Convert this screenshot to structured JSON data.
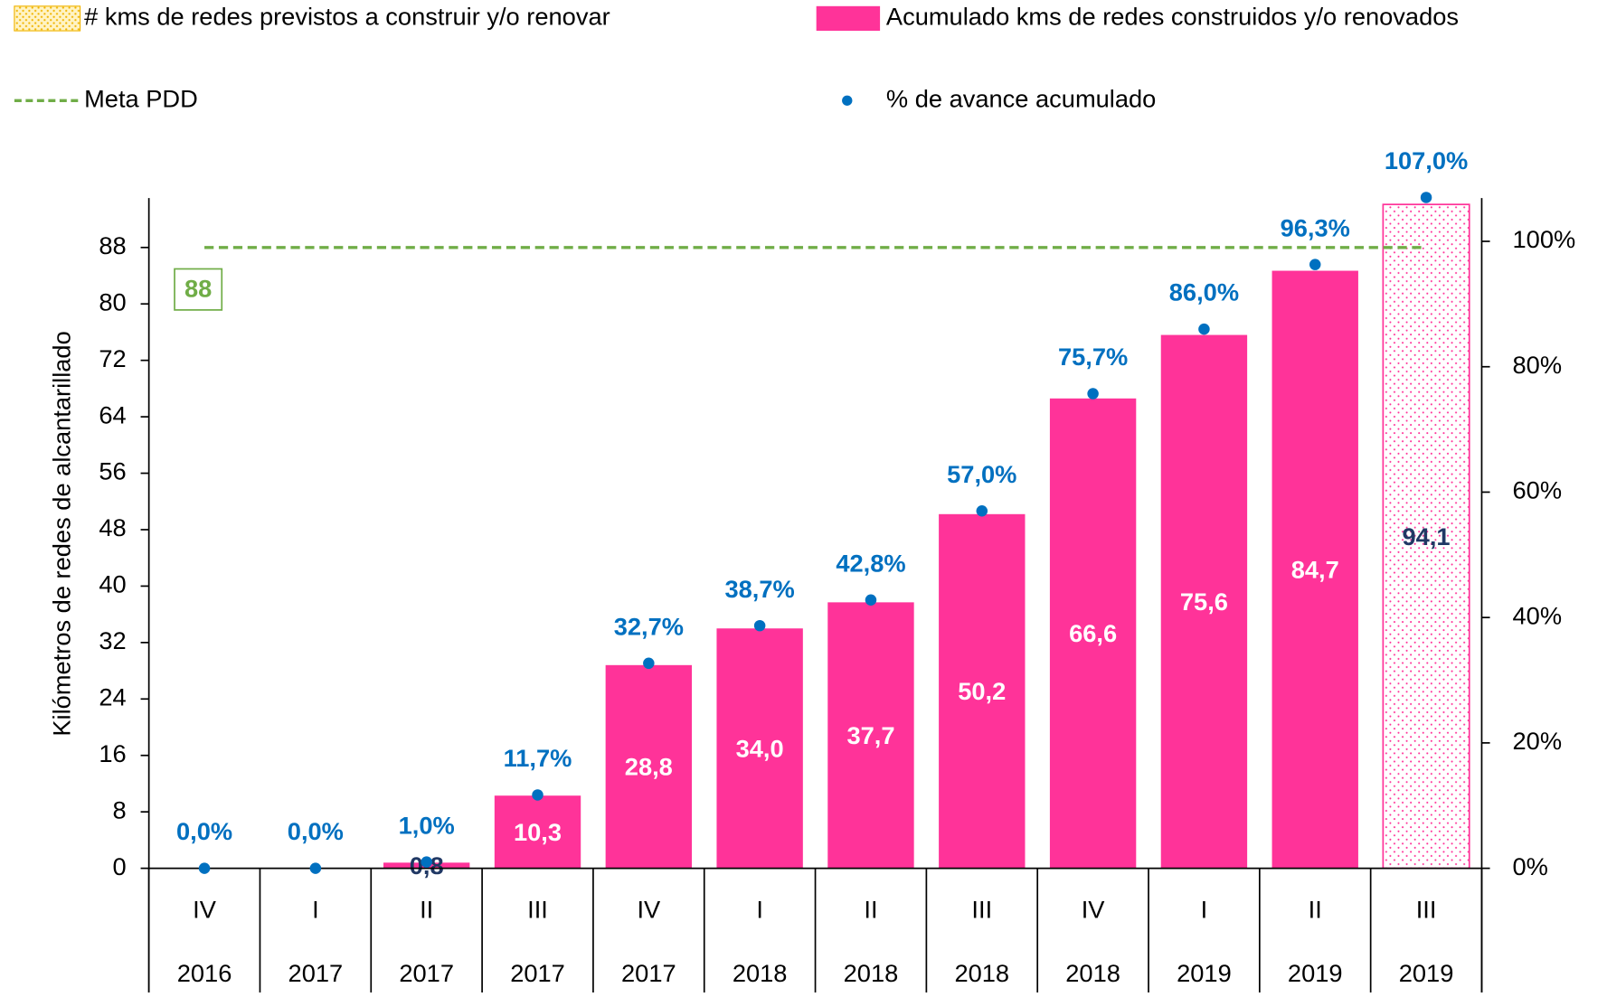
{
  "chart_data": {
    "type": "bar",
    "y_axis_label": "Kilómetros de redes de alcantarillado",
    "categories": [
      "IV",
      "I",
      "II",
      "III",
      "IV",
      "I",
      "II",
      "III",
      "IV",
      "I",
      "II",
      "III"
    ],
    "category_years": [
      "2016",
      "2017",
      "2017",
      "2017",
      "2017",
      "2018",
      "2018",
      "2018",
      "2018",
      "2019",
      "2019",
      "2019"
    ],
    "series": [
      {
        "name": "# kms de redes previstos a construir y/o renovar",
        "type": "bar",
        "color": "#ff3399",
        "values": [
          null,
          null,
          null,
          null,
          null,
          null,
          null,
          null,
          null,
          null,
          null,
          94.1
        ],
        "value_labels": [
          null,
          null,
          null,
          null,
          null,
          null,
          null,
          null,
          null,
          null,
          null,
          "94,1"
        ]
      },
      {
        "name": "Acumulado kms de redes construidos y/o renovados",
        "type": "bar",
        "color": "#ff3399",
        "values": [
          0,
          0,
          0.8,
          10.3,
          28.8,
          34.0,
          37.7,
          50.2,
          66.6,
          75.6,
          84.7,
          null
        ],
        "value_labels": [
          null,
          null,
          "0,8",
          "10,3",
          "28,8",
          "34,0",
          "37,7",
          "50,2",
          "66,6",
          "75,6",
          "84,7",
          null
        ]
      },
      {
        "name": "% de avance acumulado",
        "type": "scatter",
        "axis": "y2",
        "color": "#0070c0",
        "values": [
          0,
          0,
          1.0,
          11.7,
          32.7,
          38.7,
          42.8,
          57.0,
          75.7,
          86.0,
          96.3,
          107.0
        ],
        "value_labels": [
          "0,0%",
          "0,0%",
          "1,0%",
          "11,7%",
          "32,7%",
          "38,7%",
          "42,8%",
          "57,0%",
          "75,7%",
          "86,0%",
          "96,3%",
          "107,0%"
        ]
      }
    ],
    "meta": {
      "name": "Meta PDD",
      "value": 88,
      "color": "#70ad47"
    },
    "ylim": [
      0,
      95
    ],
    "yticks": [
      0,
      8,
      16,
      24,
      32,
      40,
      48,
      56,
      64,
      72,
      80,
      88
    ],
    "y2lim": [
      0,
      106.9
    ],
    "y2ticks": [
      {
        "value": 0,
        "label": "0%"
      },
      {
        "value": 20,
        "label": "20%"
      },
      {
        "value": 40,
        "label": "40%"
      },
      {
        "value": 60,
        "label": "60%"
      },
      {
        "value": 80,
        "label": "80%"
      },
      {
        "value": 100,
        "label": "100%"
      }
    ]
  }
}
